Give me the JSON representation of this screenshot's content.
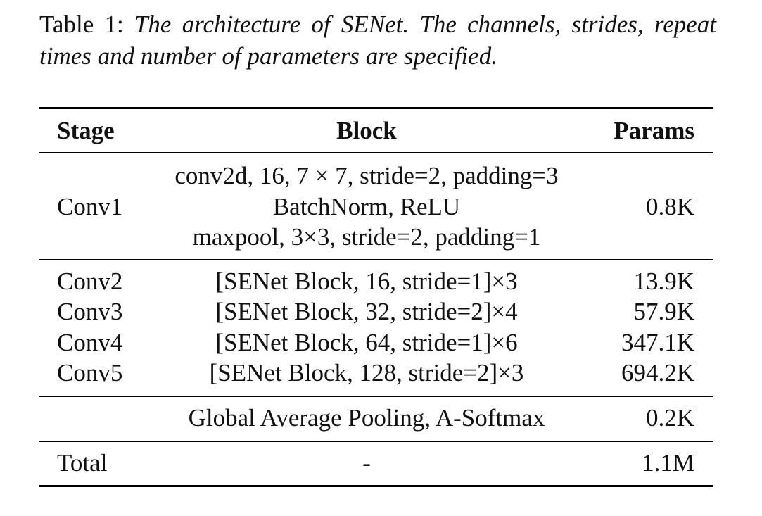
{
  "caption": {
    "title": "Table 1:",
    "text": "The architecture of SENet. The channels, strides, repeat times and number of parameters are specified."
  },
  "table": {
    "headers": {
      "stage": "Stage",
      "block": "Block",
      "params": "Params"
    },
    "conv1": {
      "stage": "Conv1",
      "block_lines": [
        "conv2d, 16, 7 × 7, stride=2, padding=3",
        "BatchNorm, ReLU",
        "maxpool, 3×3, stride=2, padding=1"
      ],
      "params": "0.8K"
    },
    "stages": [
      {
        "stage": "Conv2",
        "block": "[SENet Block, 16, stride=1]×3",
        "params": "13.9K"
      },
      {
        "stage": "Conv3",
        "block": "[SENet Block, 32, stride=2]×4",
        "params": "57.9K"
      },
      {
        "stage": "Conv4",
        "block": "[SENet Block, 64, stride=1]×6",
        "params": "347.1K"
      },
      {
        "stage": "Conv5",
        "block": "[SENet Block, 128, stride=2]×3",
        "params": "694.2K"
      }
    ],
    "pooling": {
      "stage": "",
      "block": "Global Average Pooling, A-Softmax",
      "params": "0.2K"
    },
    "total": {
      "stage": "Total",
      "block": "-",
      "params": "1.1M"
    }
  }
}
